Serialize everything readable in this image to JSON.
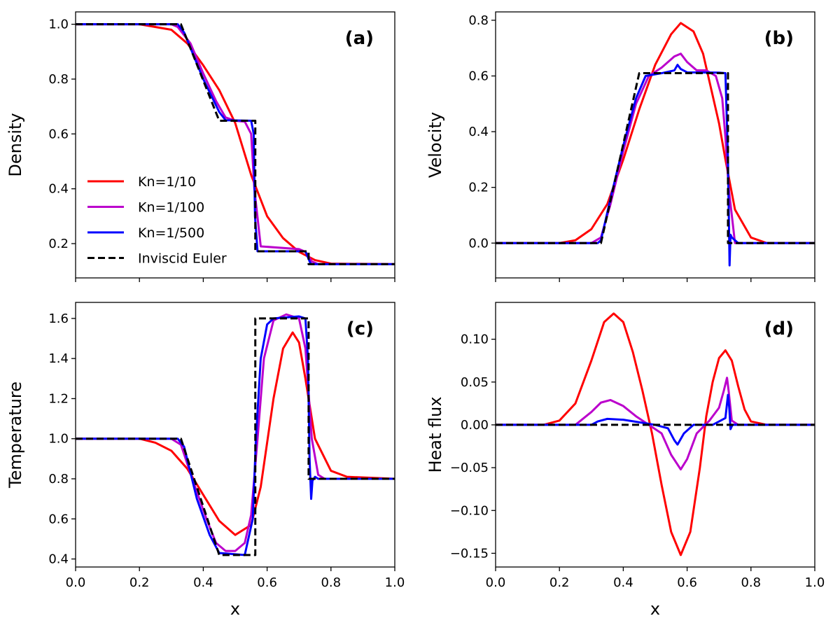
{
  "chart_data": [
    {
      "type": "line",
      "panel_label": "(a)",
      "ylabel": "Density",
      "xlabel": "",
      "xlim": [
        0,
        1
      ],
      "ylim": [
        0.075,
        1.045
      ],
      "x_ticks": [
        0.0,
        0.2,
        0.4,
        0.6,
        0.8,
        1.0
      ],
      "x_tick_labels_shown": false,
      "y_ticks": [
        0.2,
        0.4,
        0.6,
        0.8,
        1.0
      ],
      "legend": "lower-left",
      "series": [
        {
          "name": "Kn=1/10",
          "color": "#ff0000",
          "dash": "solid",
          "x": [
            0.0,
            0.2,
            0.3,
            0.35,
            0.4,
            0.45,
            0.5,
            0.55,
            0.6,
            0.65,
            0.7,
            0.75,
            0.8,
            1.0
          ],
          "y": [
            1.0,
            1.0,
            0.98,
            0.93,
            0.85,
            0.76,
            0.64,
            0.45,
            0.3,
            0.22,
            0.17,
            0.14,
            0.127,
            0.125
          ]
        },
        {
          "name": "Kn=1/100",
          "color": "#bb00cc",
          "dash": "solid",
          "x": [
            0.0,
            0.3,
            0.32,
            0.36,
            0.4,
            0.44,
            0.47,
            0.5,
            0.53,
            0.55,
            0.56,
            0.58,
            0.7,
            0.72,
            0.74,
            0.76,
            1.0
          ],
          "y": [
            1.0,
            1.0,
            0.99,
            0.93,
            0.82,
            0.72,
            0.66,
            0.648,
            0.645,
            0.6,
            0.4,
            0.19,
            0.18,
            0.17,
            0.135,
            0.125,
            0.125
          ]
        },
        {
          "name": "Kn=1/500",
          "color": "#0000ff",
          "dash": "solid",
          "x": [
            0.0,
            0.32,
            0.34,
            0.4,
            0.45,
            0.47,
            0.55,
            0.558,
            0.562,
            0.57,
            0.72,
            0.735,
            0.74,
            1.0
          ],
          "y": [
            1.0,
            1.0,
            0.97,
            0.8,
            0.68,
            0.65,
            0.648,
            0.6,
            0.3,
            0.172,
            0.172,
            0.13,
            0.125,
            0.125
          ]
        },
        {
          "name": "Inviscid Euler",
          "color": "#000000",
          "dash": "dashed",
          "x": [
            0.0,
            0.33,
            0.45,
            0.563,
            0.563,
            0.73,
            0.73,
            1.0
          ],
          "y": [
            1.0,
            1.0,
            0.648,
            0.648,
            0.172,
            0.172,
            0.125,
            0.125
          ]
        }
      ]
    },
    {
      "type": "line",
      "panel_label": "(b)",
      "ylabel": "Velocity",
      "xlabel": "",
      "xlim": [
        0,
        1
      ],
      "ylim": [
        -0.125,
        0.83
      ],
      "x_ticks": [
        0.0,
        0.2,
        0.4,
        0.6,
        0.8,
        1.0
      ],
      "x_tick_labels_shown": false,
      "y_ticks": [
        0.0,
        0.2,
        0.4,
        0.6,
        0.8
      ],
      "series": [
        {
          "name": "Kn=1/10",
          "color": "#ff0000",
          "dash": "solid",
          "x": [
            0.0,
            0.2,
            0.25,
            0.3,
            0.35,
            0.4,
            0.45,
            0.5,
            0.55,
            0.58,
            0.62,
            0.65,
            0.7,
            0.72,
            0.75,
            0.8,
            0.85,
            1.0
          ],
          "y": [
            0.0,
            0.0,
            0.01,
            0.05,
            0.14,
            0.3,
            0.48,
            0.64,
            0.75,
            0.79,
            0.76,
            0.68,
            0.43,
            0.3,
            0.12,
            0.02,
            0.0,
            0.0
          ]
        },
        {
          "name": "Kn=1/100",
          "color": "#bb00cc",
          "dash": "solid",
          "x": [
            0.0,
            0.3,
            0.33,
            0.36,
            0.4,
            0.44,
            0.48,
            0.52,
            0.56,
            0.58,
            0.6,
            0.63,
            0.66,
            0.69,
            0.71,
            0.72,
            0.73,
            0.75,
            1.0
          ],
          "y": [
            0.0,
            0.0,
            0.02,
            0.14,
            0.33,
            0.5,
            0.6,
            0.63,
            0.67,
            0.68,
            0.65,
            0.62,
            0.62,
            0.6,
            0.52,
            0.38,
            0.2,
            0.0,
            0.0
          ]
        },
        {
          "name": "Kn=1/500",
          "color": "#0000ff",
          "dash": "solid",
          "x": [
            0.0,
            0.32,
            0.33,
            0.36,
            0.4,
            0.44,
            0.47,
            0.52,
            0.56,
            0.57,
            0.58,
            0.6,
            0.7,
            0.72,
            0.728,
            0.733,
            0.736,
            0.74,
            0.76,
            1.0
          ],
          "y": [
            0.0,
            0.0,
            0.01,
            0.16,
            0.35,
            0.52,
            0.6,
            0.61,
            0.62,
            0.64,
            0.625,
            0.613,
            0.612,
            0.61,
            0.3,
            -0.08,
            0.03,
            0.02,
            0.0,
            0.0
          ]
        },
        {
          "name": "Inviscid Euler",
          "color": "#000000",
          "dash": "dashed",
          "x": [
            0.0,
            0.33,
            0.45,
            0.728,
            0.728,
            1.0
          ],
          "y": [
            0.0,
            0.0,
            0.61,
            0.61,
            0.0,
            0.0
          ]
        }
      ]
    },
    {
      "type": "line",
      "panel_label": "(c)",
      "ylabel": "Temperature",
      "xlabel": "x",
      "xlim": [
        0,
        1
      ],
      "ylim": [
        0.36,
        1.68
      ],
      "x_ticks": [
        0.0,
        0.2,
        0.4,
        0.6,
        0.8,
        1.0
      ],
      "x_tick_labels": [
        "0.0",
        "0.2",
        "0.4",
        "0.6",
        "0.8",
        "1.0"
      ],
      "x_tick_labels_shown": true,
      "y_ticks": [
        0.4,
        0.6,
        0.8,
        1.0,
        1.2,
        1.4,
        1.6
      ],
      "series": [
        {
          "name": "Kn=1/10",
          "color": "#ff0000",
          "dash": "solid",
          "x": [
            0.0,
            0.2,
            0.25,
            0.3,
            0.35,
            0.4,
            0.45,
            0.5,
            0.55,
            0.58,
            0.62,
            0.65,
            0.68,
            0.7,
            0.72,
            0.75,
            0.8,
            0.85,
            1.0
          ],
          "y": [
            1.0,
            1.0,
            0.98,
            0.94,
            0.85,
            0.72,
            0.59,
            0.52,
            0.57,
            0.76,
            1.2,
            1.45,
            1.53,
            1.48,
            1.3,
            1.0,
            0.84,
            0.81,
            0.8
          ]
        },
        {
          "name": "Kn=1/100",
          "color": "#bb00cc",
          "dash": "solid",
          "x": [
            0.0,
            0.3,
            0.33,
            0.37,
            0.41,
            0.44,
            0.47,
            0.5,
            0.53,
            0.55,
            0.57,
            0.59,
            0.62,
            0.66,
            0.7,
            0.72,
            0.74,
            0.76,
            0.78,
            1.0
          ],
          "y": [
            1.0,
            1.0,
            0.97,
            0.78,
            0.6,
            0.48,
            0.44,
            0.44,
            0.48,
            0.62,
            1.0,
            1.4,
            1.59,
            1.62,
            1.6,
            1.45,
            1.0,
            0.82,
            0.8,
            0.8
          ]
        },
        {
          "name": "Kn=1/500",
          "color": "#0000ff",
          "dash": "solid",
          "x": [
            0.0,
            0.32,
            0.34,
            0.38,
            0.42,
            0.45,
            0.53,
            0.555,
            0.565,
            0.58,
            0.6,
            0.62,
            0.7,
            0.72,
            0.728,
            0.733,
            0.738,
            0.742,
            0.75,
            0.76,
            1.0
          ],
          "y": [
            1.0,
            1.0,
            0.96,
            0.7,
            0.52,
            0.43,
            0.42,
            0.6,
            1.0,
            1.4,
            1.57,
            1.6,
            1.61,
            1.6,
            1.4,
            0.9,
            0.7,
            0.79,
            0.81,
            0.8,
            0.8
          ]
        },
        {
          "name": "Inviscid Euler",
          "color": "#000000",
          "dash": "dashed",
          "x": [
            0.0,
            0.33,
            0.45,
            0.563,
            0.563,
            0.73,
            0.73,
            1.0
          ],
          "y": [
            1.0,
            1.0,
            0.42,
            0.42,
            1.6,
            1.6,
            0.8,
            0.8
          ]
        }
      ]
    },
    {
      "type": "line",
      "panel_label": "(d)",
      "ylabel": "Heat flux",
      "xlabel": "x",
      "xlim": [
        0,
        1
      ],
      "ylim": [
        -0.166,
        0.143
      ],
      "x_ticks": [
        0.0,
        0.2,
        0.4,
        0.6,
        0.8,
        1.0
      ],
      "x_tick_labels": [
        "0.0",
        "0.2",
        "0.4",
        "0.6",
        "0.8",
        "1.0"
      ],
      "x_tick_labels_shown": true,
      "y_ticks": [
        -0.15,
        -0.1,
        -0.05,
        0.0,
        0.05,
        0.1
      ],
      "y_tick_labels": [
        "−0.15",
        "−0.10",
        "−0.05",
        "0.00",
        "0.05",
        "0.10"
      ],
      "series": [
        {
          "name": "Kn=1/10",
          "color": "#ff0000",
          "dash": "solid",
          "x": [
            0.0,
            0.15,
            0.2,
            0.25,
            0.3,
            0.34,
            0.37,
            0.4,
            0.43,
            0.46,
            0.49,
            0.52,
            0.55,
            0.58,
            0.61,
            0.64,
            0.66,
            0.68,
            0.7,
            0.72,
            0.74,
            0.76,
            0.78,
            0.8,
            0.85,
            1.0
          ],
          "y": [
            0.0,
            0.0,
            0.005,
            0.025,
            0.075,
            0.12,
            0.13,
            0.12,
            0.085,
            0.04,
            -0.01,
            -0.07,
            -0.125,
            -0.152,
            -0.125,
            -0.05,
            0.01,
            0.05,
            0.078,
            0.087,
            0.075,
            0.045,
            0.018,
            0.004,
            0.0,
            0.0
          ]
        },
        {
          "name": "Kn=1/100",
          "color": "#bb00cc",
          "dash": "solid",
          "x": [
            0.0,
            0.25,
            0.3,
            0.33,
            0.36,
            0.4,
            0.44,
            0.48,
            0.52,
            0.55,
            0.58,
            0.6,
            0.63,
            0.67,
            0.7,
            0.715,
            0.725,
            0.73,
            0.74,
            0.76,
            1.0
          ],
          "y": [
            0.0,
            0.0,
            0.015,
            0.026,
            0.029,
            0.022,
            0.01,
            0.0,
            -0.01,
            -0.035,
            -0.052,
            -0.04,
            -0.01,
            0.005,
            0.02,
            0.04,
            0.055,
            0.04,
            0.005,
            0.0,
            0.0
          ]
        },
        {
          "name": "Kn=1/500",
          "color": "#0000ff",
          "dash": "solid",
          "x": [
            0.0,
            0.3,
            0.32,
            0.35,
            0.4,
            0.45,
            0.5,
            0.54,
            0.56,
            0.57,
            0.59,
            0.62,
            0.68,
            0.72,
            0.728,
            0.732,
            0.736,
            0.742,
            0.75,
            1.0
          ],
          "y": [
            0.0,
            0.0,
            0.004,
            0.007,
            0.006,
            0.003,
            0.0,
            -0.004,
            -0.018,
            -0.023,
            -0.01,
            0.0,
            0.0,
            0.008,
            0.035,
            0.02,
            -0.005,
            0.0,
            0.0,
            0.0
          ]
        },
        {
          "name": "Inviscid Euler",
          "color": "#000000",
          "dash": "dashed",
          "x": [
            0.0,
            1.0
          ],
          "y": [
            0.0,
            0.0
          ]
        }
      ]
    }
  ]
}
